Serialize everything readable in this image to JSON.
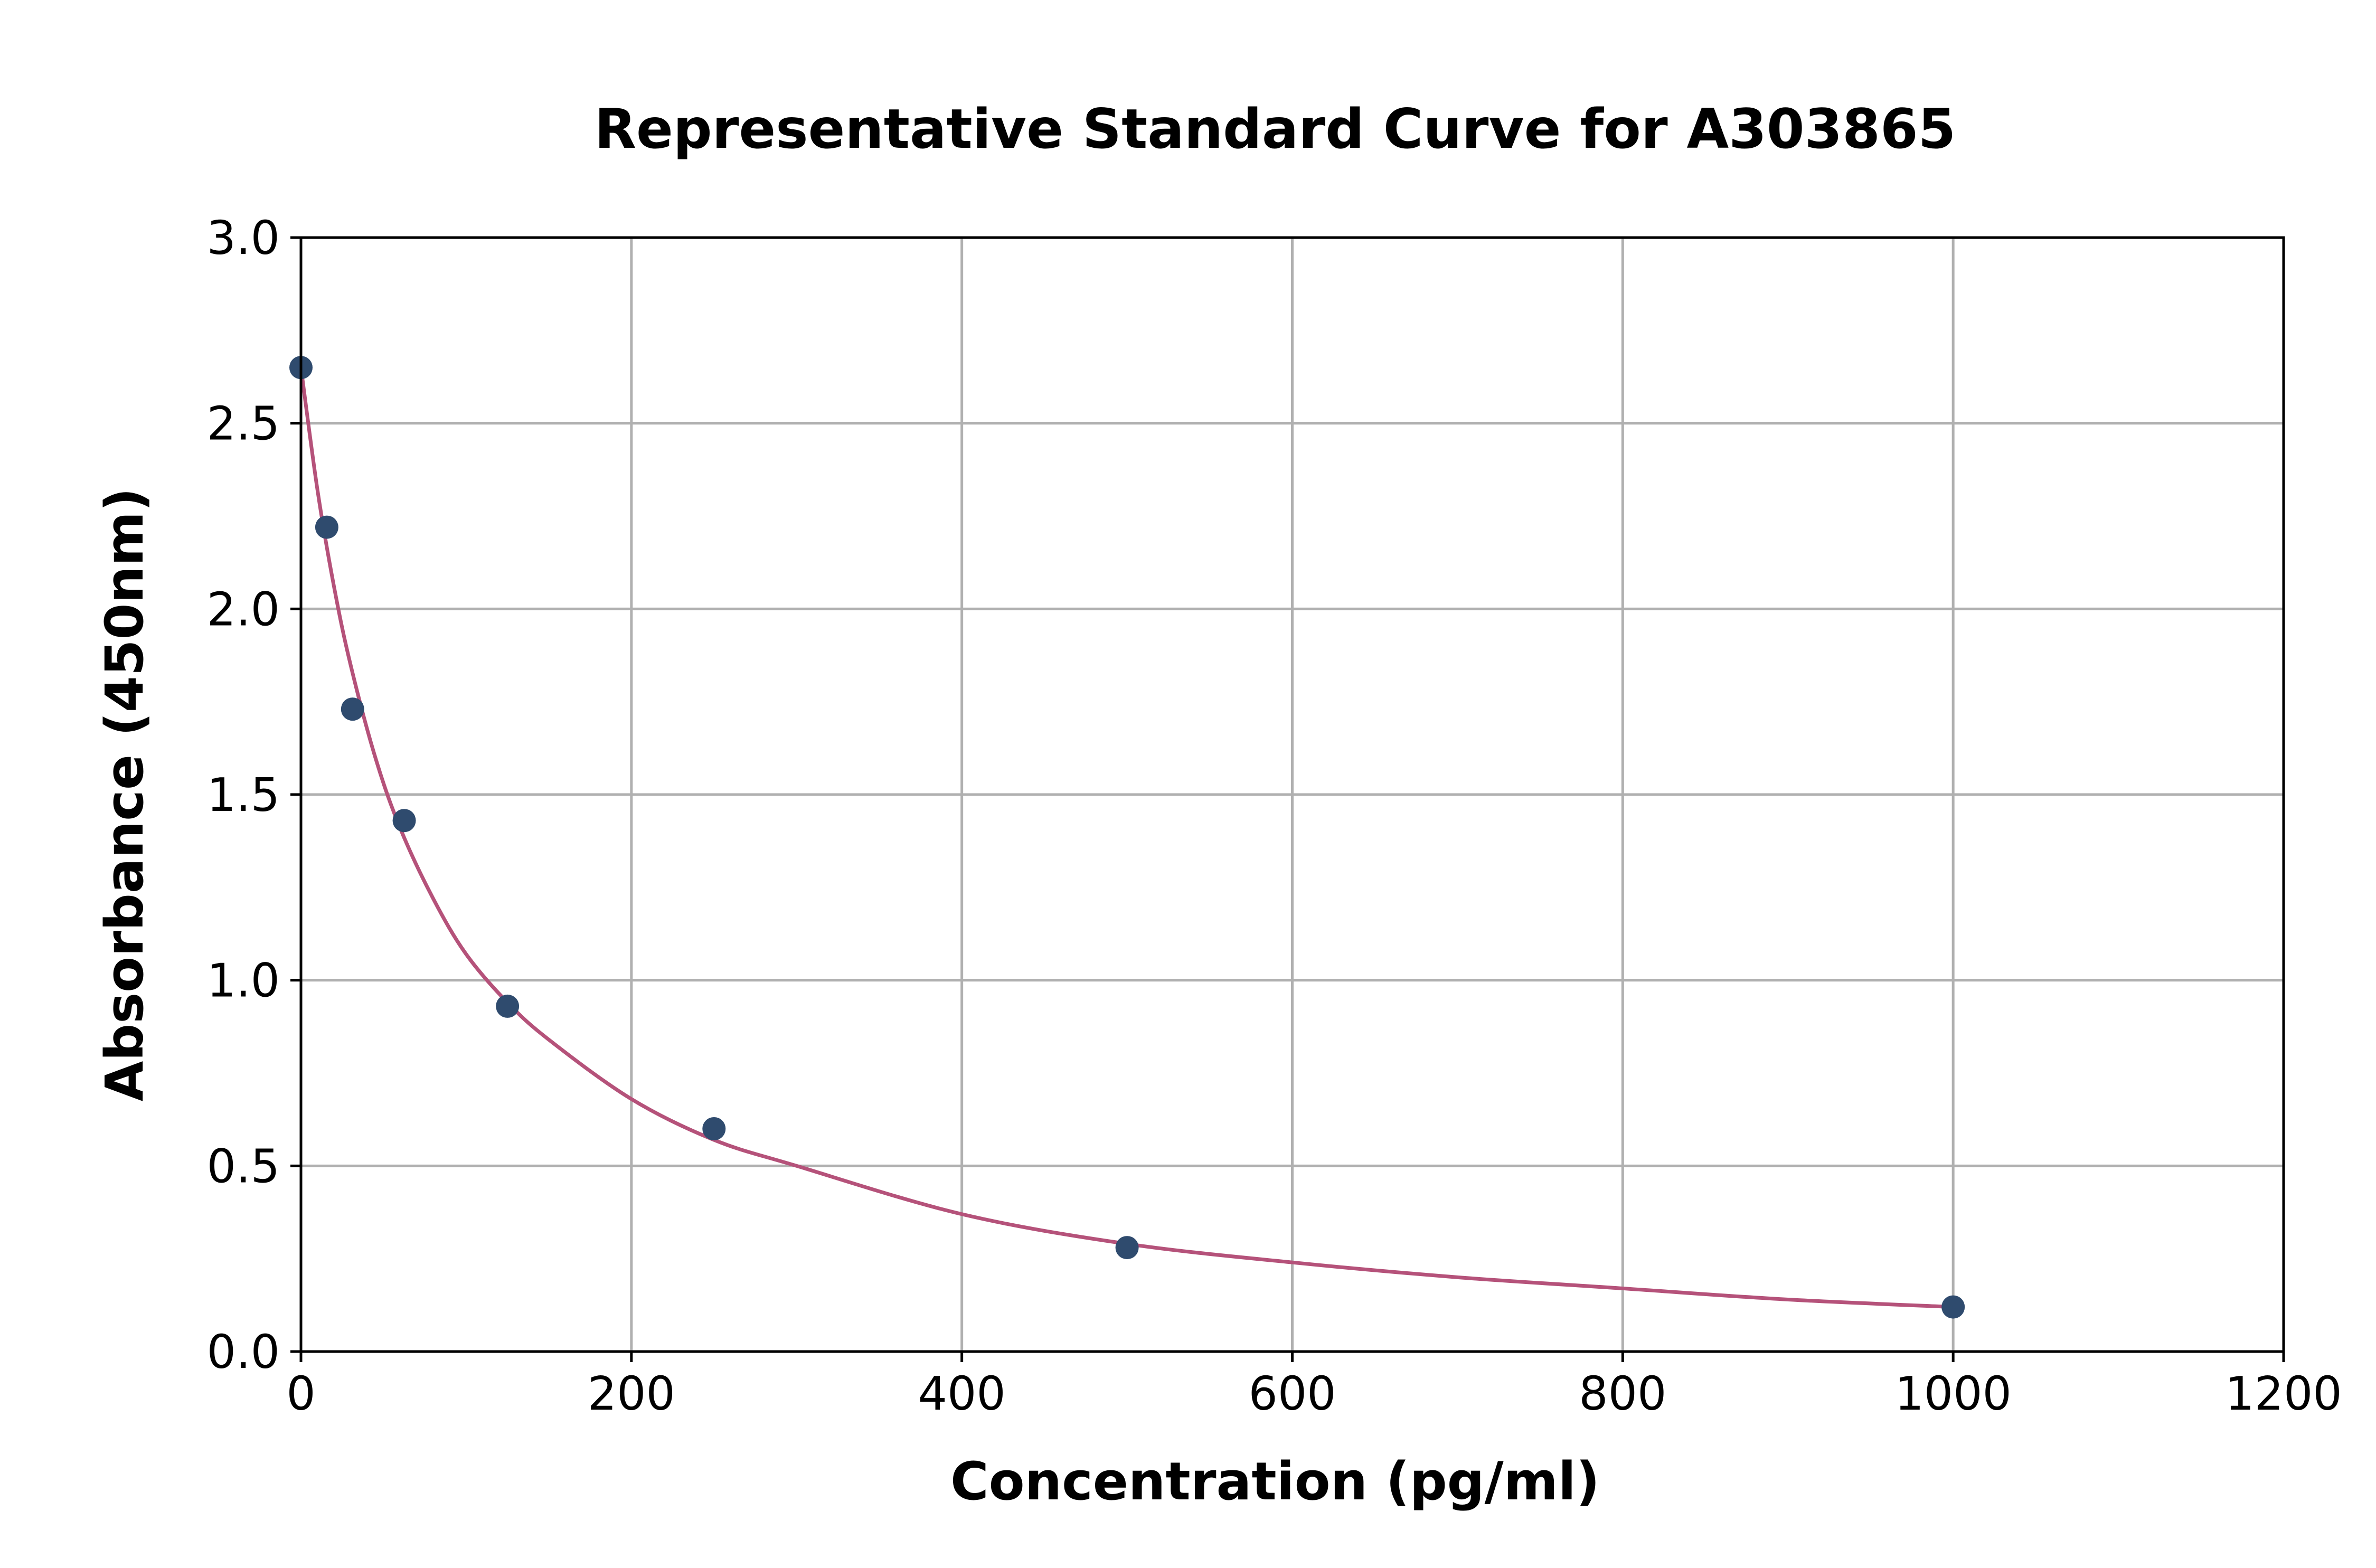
{
  "chart_data": {
    "type": "scatter",
    "title": "Representative Standard Curve for A303865",
    "xlabel": "Concentration (pg/ml)",
    "ylabel": "Absorbance (450nm)",
    "xlim": [
      0,
      1200
    ],
    "ylim": [
      0,
      3.0
    ],
    "x_ticks": [
      0,
      200,
      400,
      600,
      800,
      1000,
      1200
    ],
    "y_ticks": [
      0.0,
      0.5,
      1.0,
      1.5,
      2.0,
      2.5,
      3.0
    ],
    "x_tick_labels": [
      "0",
      "200",
      "400",
      "600",
      "800",
      "1000",
      "1200"
    ],
    "y_tick_labels": [
      "0.0",
      "0.5",
      "1.0",
      "1.5",
      "2.0",
      "2.5",
      "3.0"
    ],
    "grid": true,
    "legend": "none",
    "series": [
      {
        "kind": "points",
        "color": "#2f4b6e",
        "x": [
          0,
          15.625,
          31.25,
          62.5,
          125,
          250,
          500,
          1000
        ],
        "y": [
          2.65,
          2.22,
          1.73,
          1.43,
          0.93,
          0.6,
          0.28,
          0.12
        ]
      },
      {
        "kind": "fit-curve",
        "color": "#b5527a",
        "x": [
          0,
          10,
          20,
          30,
          45,
          60,
          80,
          100,
          125,
          150,
          200,
          250,
          300,
          400,
          500,
          600,
          700,
          800,
          900,
          1000
        ],
        "y": [
          2.65,
          2.32,
          2.06,
          1.85,
          1.6,
          1.41,
          1.22,
          1.07,
          0.94,
          0.84,
          0.68,
          0.57,
          0.5,
          0.37,
          0.29,
          0.24,
          0.2,
          0.17,
          0.14,
          0.12
        ]
      }
    ]
  }
}
